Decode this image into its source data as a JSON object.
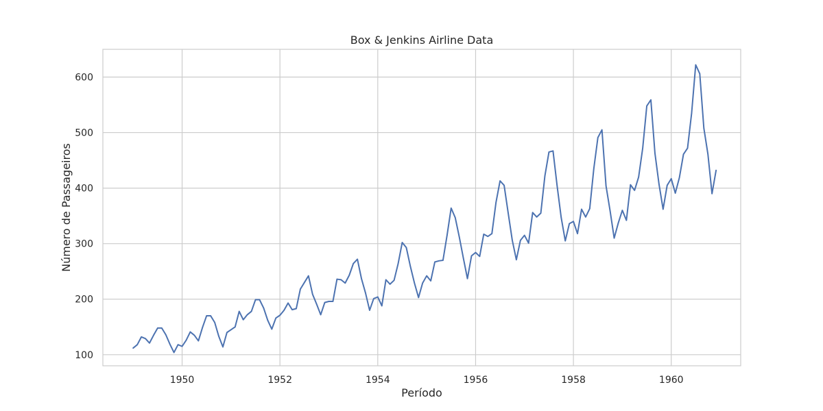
{
  "chart_data": {
    "type": "line",
    "title": "Box & Jenkins Airline Data",
    "xlabel": "Período",
    "ylabel": "Número de Passageiros",
    "xlim": [
      1948.38,
      1961.42
    ],
    "ylim": [
      80,
      650
    ],
    "xticks": [
      1950,
      1952,
      1954,
      1956,
      1958,
      1960
    ],
    "xtick_labels": [
      "1950",
      "1952",
      "1954",
      "1956",
      "1958",
      "1960"
    ],
    "yticks": [
      100,
      200,
      300,
      400,
      500,
      600
    ],
    "ytick_labels": [
      "100",
      "200",
      "300",
      "400",
      "500",
      "600"
    ],
    "grid": true,
    "x_start": 1949.0,
    "x_step": 0.08333333,
    "series": [
      {
        "color": "#4c72b0",
        "values": [
          112,
          118,
          132,
          129,
          121,
          135,
          148,
          148,
          136,
          119,
          104,
          118,
          115,
          126,
          141,
          135,
          125,
          149,
          170,
          170,
          158,
          133,
          114,
          140,
          145,
          150,
          178,
          163,
          172,
          178,
          199,
          199,
          184,
          162,
          146,
          166,
          171,
          180,
          193,
          181,
          183,
          218,
          230,
          242,
          209,
          191,
          172,
          194,
          196,
          196,
          236,
          235,
          229,
          243,
          264,
          272,
          237,
          211,
          180,
          201,
          204,
          188,
          235,
          227,
          234,
          264,
          302,
          293,
          259,
          229,
          203,
          229,
          242,
          233,
          267,
          269,
          270,
          315,
          364,
          347,
          312,
          274,
          237,
          278,
          284,
          277,
          317,
          313,
          318,
          374,
          413,
          405,
          355,
          306,
          271,
          306,
          315,
          301,
          356,
          348,
          355,
          422,
          465,
          467,
          404,
          347,
          305,
          336,
          340,
          318,
          362,
          348,
          363,
          435,
          491,
          505,
          404,
          359,
          310,
          337,
          360,
          342,
          406,
          396,
          420,
          472,
          548,
          559,
          463,
          407,
          362,
          405,
          417,
          391,
          419,
          461,
          472,
          535,
          622,
          606,
          508,
          461,
          390,
          432
        ]
      }
    ]
  }
}
